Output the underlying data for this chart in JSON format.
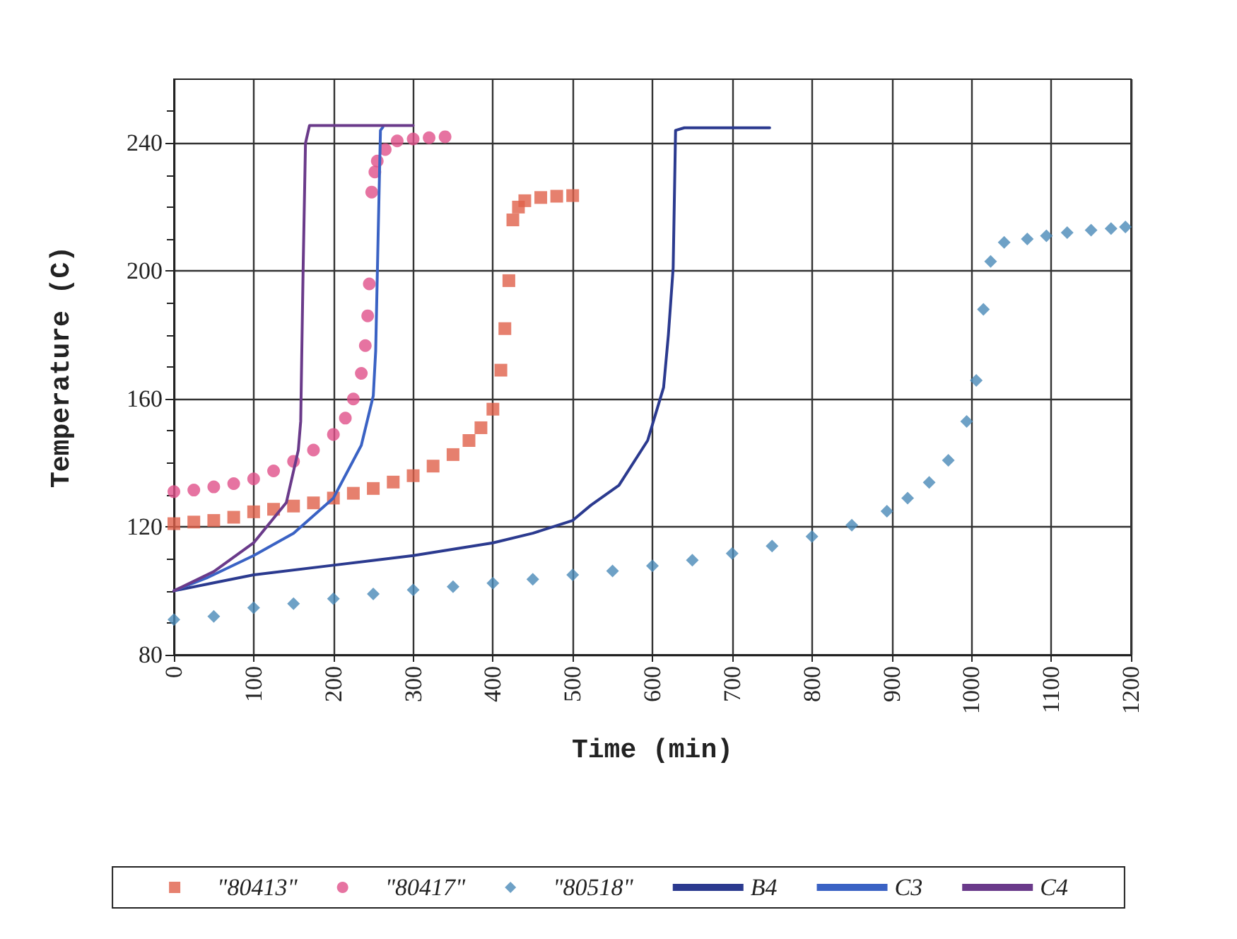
{
  "chart_data": {
    "type": "line",
    "xlabel": "Time (min)",
    "ylabel": "Temperature (C)",
    "xlim": [
      0,
      1200
    ],
    "xticks": [
      0,
      100,
      200,
      300,
      400,
      500,
      600,
      700,
      800,
      900,
      1000,
      1100,
      1200
    ],
    "ylim": [
      80,
      260
    ],
    "yticks": [
      80,
      {
        "value": 90,
        "label": null
      },
      {
        "value": 100,
        "label": null
      },
      {
        "value": 110,
        "label": null
      },
      120,
      {
        "value": 130,
        "label": null
      },
      {
        "value": 140,
        "label": null
      },
      {
        "value": 150,
        "label": null
      },
      160,
      {
        "value": 170,
        "label": null
      },
      {
        "value": 180,
        "label": null
      },
      {
        "value": 190,
        "label": null
      },
      200,
      {
        "value": 210,
        "label": null
      },
      {
        "value": 220,
        "label": null
      },
      {
        "value": 230,
        "label": null
      },
      240,
      {
        "value": 250,
        "label": null
      }
    ],
    "grid": true,
    "legend": "bottom",
    "series": [
      {
        "name": "\"80413\"",
        "type": "scatter",
        "marker": "square",
        "color": "#e0604a",
        "x": [
          0,
          25,
          50,
          75,
          100,
          125,
          150,
          175,
          200,
          225,
          250,
          275,
          300,
          325,
          350,
          370,
          385,
          400,
          410,
          415,
          420,
          425,
          432,
          440,
          460,
          480,
          500
        ],
        "values": [
          121,
          121.5,
          122,
          123,
          124.7,
          125.5,
          126.5,
          127.5,
          129,
          130.5,
          132,
          134,
          136,
          139,
          142.6,
          147,
          151,
          156.8,
          169,
          182,
          197,
          216,
          220,
          222,
          223,
          223.4,
          223.6
        ]
      },
      {
        "name": "\"80417\"",
        "type": "scatter",
        "marker": "circle",
        "color": "#e0508a",
        "x": [
          0,
          25,
          50,
          75,
          100,
          125,
          150,
          175,
          200,
          215,
          225,
          235,
          240,
          243,
          245,
          248,
          252,
          255,
          265,
          280,
          300,
          320,
          340
        ],
        "values": [
          131,
          131.5,
          132.5,
          133.5,
          135,
          137.5,
          140.5,
          144,
          148.9,
          154,
          160,
          168,
          176.7,
          186,
          196,
          224.7,
          231,
          234.4,
          238,
          240.7,
          241.3,
          241.7,
          242
        ]
      },
      {
        "name": "\"80518\"",
        "type": "scatter",
        "marker": "diamond",
        "color": "#4a8ab8",
        "x": [
          0,
          50,
          100,
          150,
          200,
          250,
          300,
          350,
          400,
          450,
          500,
          550,
          600,
          650,
          700,
          750,
          800,
          850,
          894,
          920,
          947,
          971,
          994,
          1006,
          1015,
          1024,
          1041,
          1070,
          1094,
          1120,
          1150,
          1175,
          1193
        ],
        "values": [
          91,
          92,
          94.7,
          96,
          97.5,
          99,
          100.3,
          101.3,
          102.4,
          103.6,
          105,
          106.2,
          107.8,
          109.6,
          111.7,
          114,
          117,
          120.5,
          124.9,
          129,
          133.9,
          140.8,
          153,
          165.8,
          188,
          203,
          209,
          210,
          211,
          212,
          212.8,
          213.3,
          213.8
        ]
      },
      {
        "name": "B4",
        "type": "line",
        "marker": "none",
        "line_style": "solid",
        "color": "#2b3a8f",
        "x": [
          0,
          50,
          100,
          200,
          300,
          400,
          450,
          500,
          523,
          558,
          594,
          614,
          620,
          626,
          629,
          640,
          700,
          747
        ],
        "values": [
          100,
          102.5,
          105,
          108,
          111,
          115,
          118,
          122,
          126.8,
          133,
          147,
          163.6,
          180,
          201,
          244,
          244.8,
          244.8,
          244.8
        ]
      },
      {
        "name": "C3",
        "type": "line",
        "marker": "none",
        "line_style": "solid",
        "color": "#3a62c4",
        "x": [
          0,
          41,
          100,
          150,
          200,
          235,
          250,
          253,
          256,
          259,
          262
        ],
        "values": [
          100,
          104,
          111,
          118,
          129,
          145.5,
          161,
          175,
          210,
          244,
          245
        ]
      },
      {
        "name": "C4",
        "type": "line",
        "marker": "none",
        "line_style": "solid",
        "color": "#6a3a8a",
        "x": [
          0,
          50,
          100,
          141,
          156,
          159,
          162,
          165,
          170,
          300
        ],
        "values": [
          100,
          106,
          115,
          127.6,
          144,
          153,
          200,
          240,
          245.5,
          245.5
        ]
      }
    ]
  }
}
